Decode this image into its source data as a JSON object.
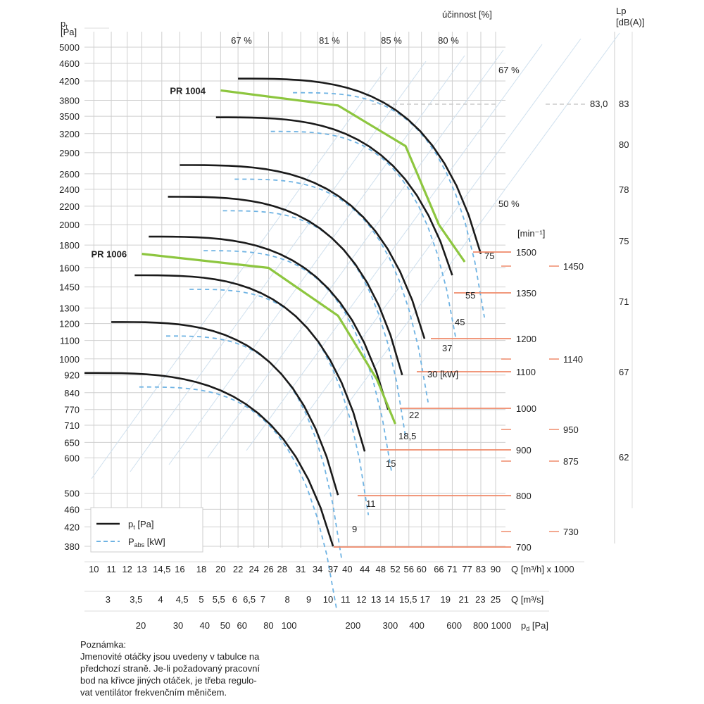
{
  "chart_data": {
    "type": "line",
    "y_axis": {
      "unit_line1": "p",
      "unit_sub": "t",
      "unit_line2": "[Pa]",
      "ticks": [
        5000,
        4600,
        4200,
        3800,
        3500,
        3200,
        2900,
        2600,
        2400,
        2200,
        2000,
        1800,
        1600,
        1450,
        1300,
        1200,
        1100,
        1000,
        920,
        840,
        770,
        710,
        650,
        600,
        500,
        460,
        420,
        380
      ]
    },
    "x_axis_q_m3h": {
      "label": "Q [m³/h] x 1000",
      "ticks": [
        "10",
        "11",
        "12",
        "13",
        "14,5",
        "16",
        "18",
        "20",
        "22",
        "24",
        "26",
        "28",
        "31",
        "34",
        "37",
        "40",
        "44",
        "48",
        "52",
        "56",
        "60",
        "66",
        "71",
        "77",
        "83",
        "90"
      ]
    },
    "x_axis_q_m3s": {
      "label": "Q [m³/s]",
      "ticks": [
        "3",
        "3,5",
        "4",
        "4,5",
        "5",
        "5,5",
        "6",
        "6,5",
        "7",
        "8",
        "9",
        "10",
        "11",
        "12",
        "13",
        "14",
        "15,5",
        "17",
        "19",
        "21",
        "23",
        "25"
      ]
    },
    "x_axis_pd": {
      "label_main": "p",
      "label_sub": "d",
      "label_unit": " [Pa]",
      "ticks": [
        "20",
        "30",
        "40",
        "50",
        "60",
        "80",
        "100",
        "200",
        "300",
        "400",
        "600",
        "800",
        "1000"
      ]
    },
    "efficiency": {
      "title": "účinnost [%]",
      "top_labels": [
        "67 %",
        "81 %",
        "85 %",
        "80 %"
      ],
      "side_labels": [
        "67 %",
        "50 %"
      ]
    },
    "speed_label": "[min⁻¹]",
    "speeds": [
      "1500",
      "1350",
      "1200",
      "1100",
      "1000",
      "900",
      "800",
      "700"
    ],
    "speeds_other": [
      "1450",
      "1140",
      "950",
      "875",
      "730"
    ],
    "power_labels": [
      "75",
      "55",
      "45",
      "37",
      "30 [kW]",
      "22",
      "18,5",
      "15",
      "11",
      "9"
    ],
    "noise": {
      "title_line1": "Lp",
      "title_line2": "[dB(A)]",
      "ref_value": "83,0",
      "ticks": [
        "83",
        "80",
        "78",
        "75",
        "71",
        "67",
        "62"
      ]
    },
    "series": [
      {
        "name": "PR 1004",
        "kind": "highlight",
        "points": [
          [
            20,
            4000
          ],
          [
            38,
            3700
          ],
          [
            55,
            3000
          ],
          [
            66,
            2000
          ],
          [
            76,
            1650
          ]
        ]
      },
      {
        "name": "PR 1006",
        "kind": "highlight",
        "points": [
          [
            13,
            1720
          ],
          [
            26,
            1600
          ],
          [
            38,
            1250
          ],
          [
            47,
            900
          ],
          [
            52,
            715
          ]
        ]
      }
    ],
    "legend": [
      {
        "label": "p",
        "sub": "t",
        "unit": " [Pa]",
        "style": "solid"
      },
      {
        "label": "P",
        "sub": "abs",
        "unit": " [kW]",
        "style": "dashed"
      }
    ],
    "colors": {
      "curve": "#1a1a1a",
      "highlight": "#8dc63f",
      "dashed": "#6fb3e3",
      "speed_line": "#ef8a6a",
      "grid": "#cfcfcf"
    }
  },
  "note": {
    "title": "Poznámka:",
    "lines": [
      "Jmenovité otáčky jsou uvedeny v tabulce na",
      "předchozí straně. Je-li požadovaný pracovní",
      "bod na křivce jiných otáček, je třeba regulo-",
      "vat ventilátor frekvenčním měničem."
    ]
  }
}
